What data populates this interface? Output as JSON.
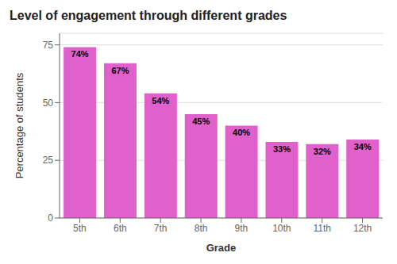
{
  "chart_data": {
    "type": "bar",
    "title": "Level of engagement through different grades",
    "xlabel": "Grade",
    "ylabel": "Percentage of students",
    "categories": [
      "5th",
      "6th",
      "7th",
      "8th",
      "9th",
      "10th",
      "11th",
      "12th"
    ],
    "values": [
      74,
      67,
      54,
      45,
      40,
      33,
      32,
      34
    ],
    "value_labels": [
      "74%",
      "67%",
      "54%",
      "45%",
      "40%",
      "33%",
      "32%",
      "34%"
    ],
    "data_labels": true,
    "color": "#e060cc",
    "ylim": [
      0,
      80
    ],
    "yticks": [
      0,
      25,
      50,
      75
    ],
    "grid": true
  }
}
